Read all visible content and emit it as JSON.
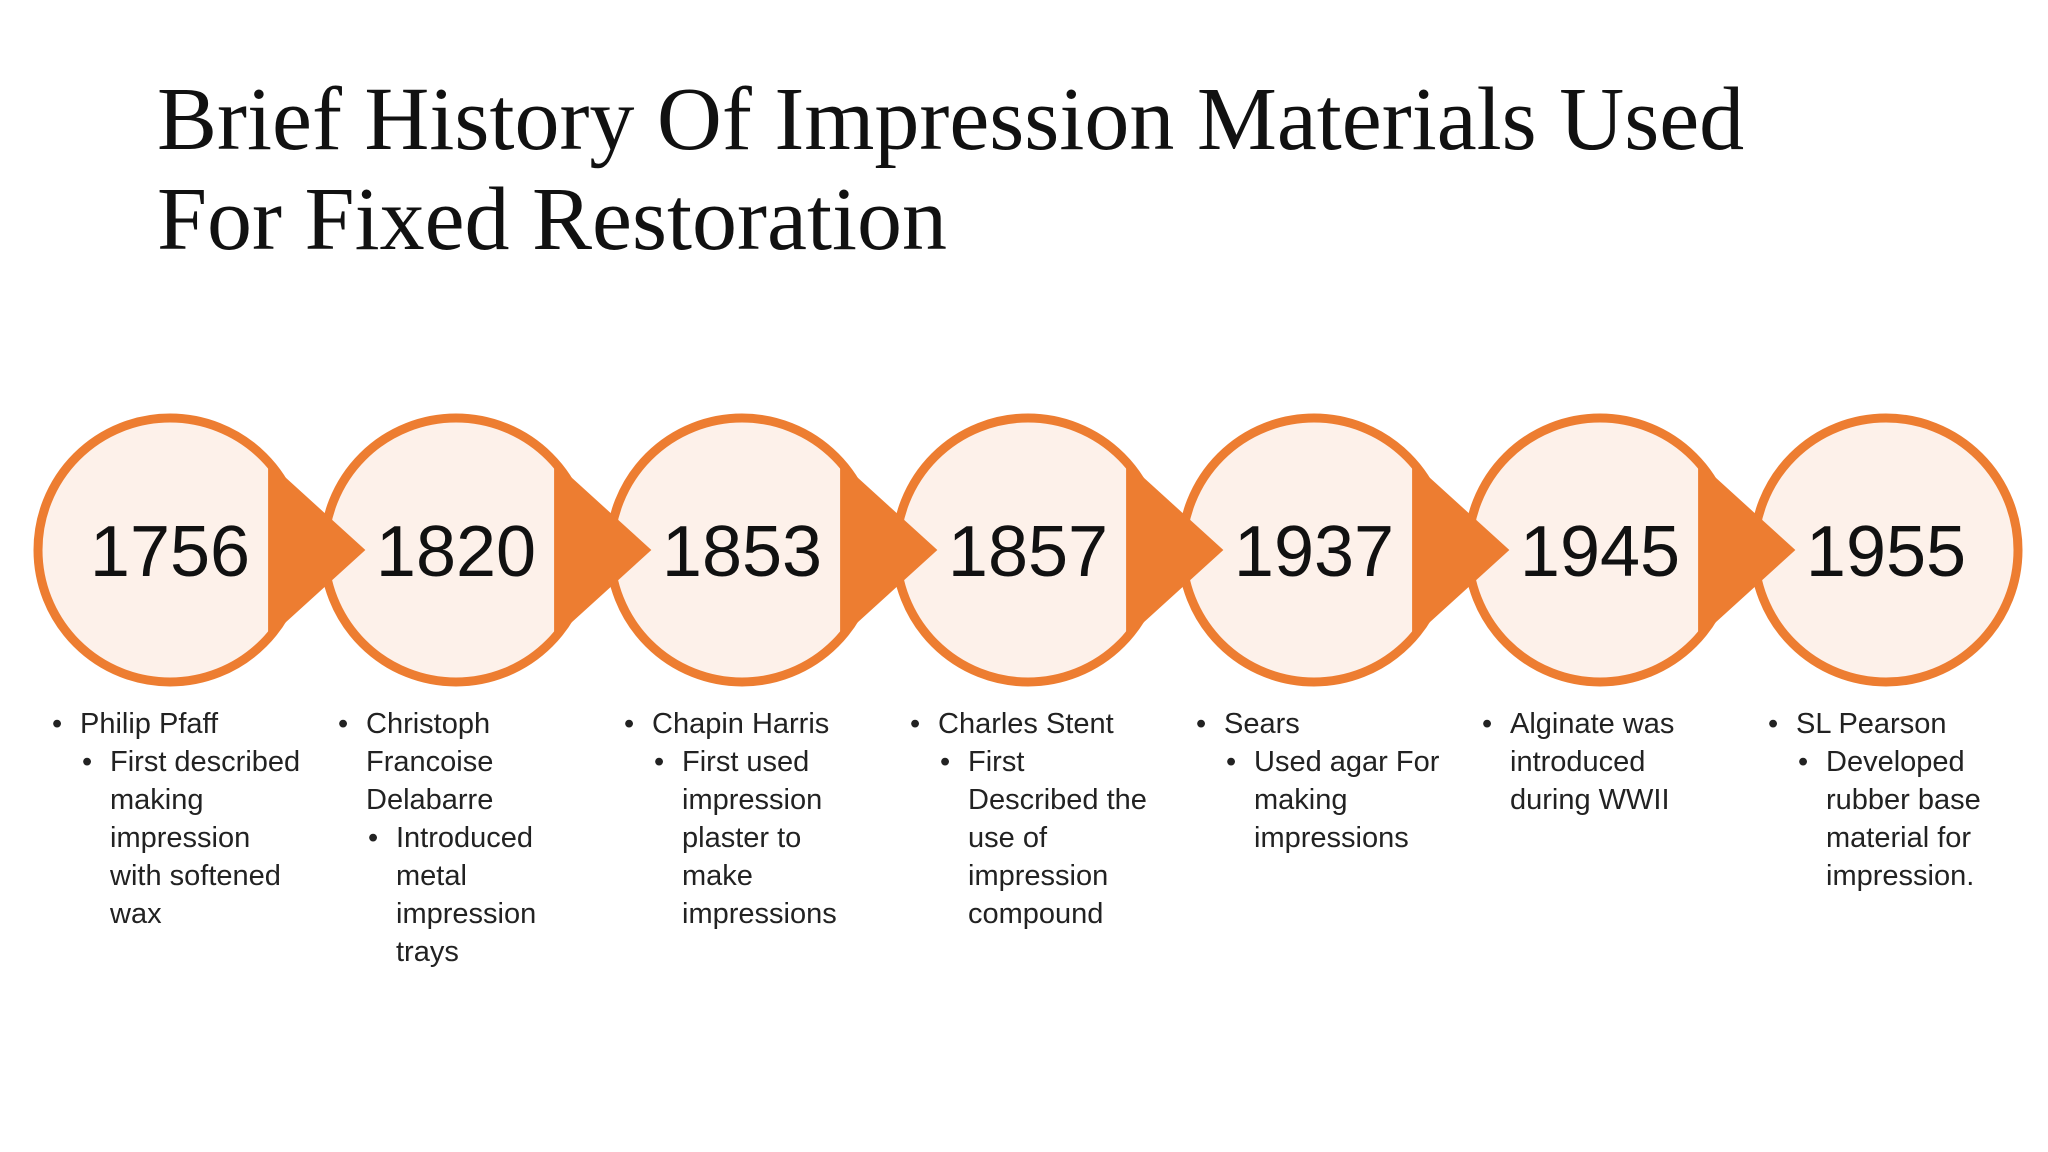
{
  "title": "Brief History Of Impression Materials Used For Fixed Restoration",
  "timeline": [
    {
      "year": "1756",
      "name": "Philip Pfaff",
      "detail": "First described making impression with softened wax"
    },
    {
      "year": "1820",
      "name": "Christoph Francoise Delabarre",
      "detail": "Introduced metal impression trays"
    },
    {
      "year": "1853",
      "name": "Chapin Harris",
      "detail": "First used impression plaster to make impressions"
    },
    {
      "year": "1857",
      "name": "Charles Stent",
      "detail": "First Described the use of impression compound"
    },
    {
      "year": "1937",
      "name": "Sears",
      "detail": "Used agar For making impressions"
    },
    {
      "year": "1945",
      "name": "Alginate was introduced during WWII"
    },
    {
      "year": "1955",
      "name": "SL Pearson",
      "detail": "Developed rubber base material for impression."
    }
  ]
}
